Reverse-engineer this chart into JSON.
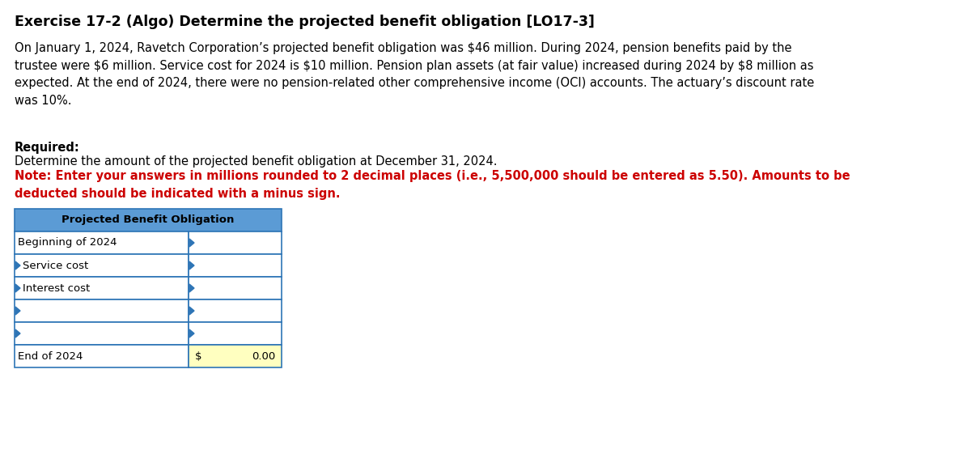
{
  "title": "Exercise 17-2 (Algo) Determine the projected benefit obligation [LO17-3]",
  "title_fontsize": 12.5,
  "body_text": "On January 1, 2024, Ravetch Corporation’s projected benefit obligation was $46 million. During 2024, pension benefits paid by the\ntrustee were $6 million. Service cost for 2024 is $10 million. Pension plan assets (at fair value) increased during 2024 by $8 million as\nexpected. At the end of 2024, there were no pension-related other comprehensive income (OCI) accounts. The actuary’s discount rate\nwas 10%.",
  "required_label": "Required:",
  "required_text": "Determine the amount of the projected benefit obligation at December 31, 2024.",
  "note_text": "Note: Enter your answers in millions rounded to 2 decimal places (i.e., 5,500,000 should be entered as 5.50). Amounts to be\ndeducted should be indicated with a minus sign.",
  "table_header": "Projected Benefit Obligation",
  "table_rows": [
    {
      "label": "Beginning of 2024",
      "indent": false,
      "left_arrow": false,
      "right_arrow": true
    },
    {
      "label": "Service cost",
      "indent": true,
      "left_arrow": true,
      "right_arrow": true
    },
    {
      "label": "Interest cost",
      "indent": true,
      "left_arrow": true,
      "right_arrow": true
    },
    {
      "label": "",
      "indent": false,
      "left_arrow": true,
      "right_arrow": true
    },
    {
      "label": "",
      "indent": false,
      "left_arrow": true,
      "right_arrow": true
    }
  ],
  "end_label": "End of 2024",
  "end_dollar": "$",
  "end_value": "0.00",
  "header_bg": "#5B9BD5",
  "header_text_color": "#000000",
  "border_color": "#2E75B6",
  "body_fontsize": 10.5,
  "note_color": "#CC0000",
  "bg_color": "#FFFFFF",
  "arrow_color": "#2E75B6",
  "yellow_bg": "#FFFFC0"
}
